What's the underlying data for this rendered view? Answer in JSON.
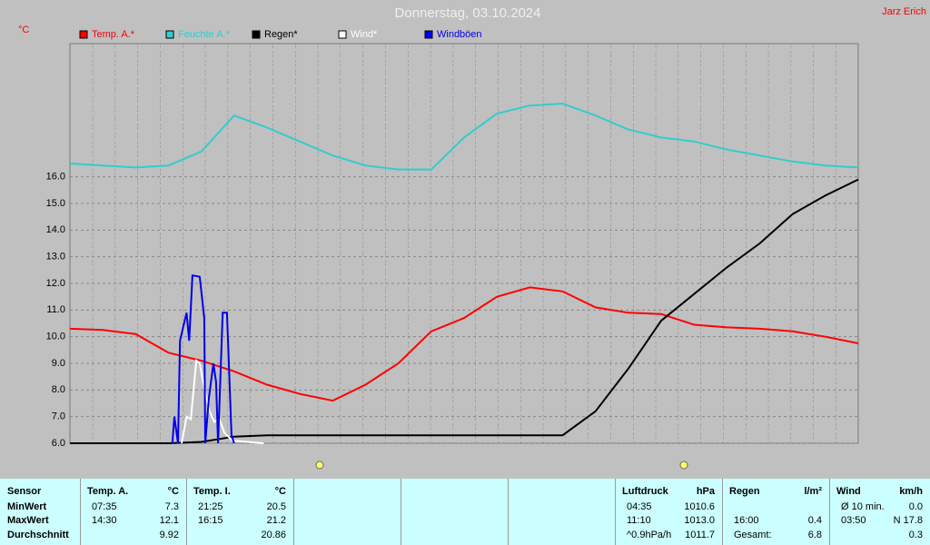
{
  "chart_data": {
    "type": "line",
    "title": "Donnerstag, 03.10.2024",
    "author": "Jarz Erich",
    "y_unit": "°C",
    "x": [
      0,
      1,
      2,
      3,
      4,
      5,
      6,
      7,
      8,
      9,
      10,
      11,
      12,
      13,
      14,
      15,
      16,
      17,
      18,
      19,
      20,
      21,
      22,
      23,
      24
    ],
    "xlim": [
      0,
      24
    ],
    "ylim": [
      6,
      21
    ],
    "yticks": [
      {
        "value": 6,
        "label": "6.0"
      },
      {
        "value": 7,
        "label": "7.0"
      },
      {
        "value": 8,
        "label": "8.0"
      },
      {
        "value": 9,
        "label": "9.0"
      },
      {
        "value": 10,
        "label": "10.0"
      },
      {
        "value": 11,
        "label": "11.0"
      },
      {
        "value": 12,
        "label": "12.0"
      },
      {
        "value": 13,
        "label": "13.0"
      },
      {
        "value": 14,
        "label": "14.0"
      },
      {
        "value": 15,
        "label": "15.0"
      },
      {
        "value": 16,
        "label": "16.0"
      }
    ],
    "y2lim": [
      0,
      100
    ],
    "grid": true,
    "series": [
      {
        "name": "Temp. A.*",
        "color": "#ff0000",
        "values": [
          10.3,
          10.25,
          10.1,
          9.4,
          9.1,
          8.7,
          8.2,
          7.85,
          7.6,
          8.2,
          9.0,
          10.2,
          10.7,
          11.5,
          11.85,
          11.7,
          11.1,
          10.9,
          10.85,
          10.45,
          10.35,
          10.3,
          10.2,
          10.0,
          9.75
        ]
      },
      {
        "name": "Feuchte A.*",
        "color": "#33cccc",
        "axis": "y2",
        "values": [
          70,
          69.5,
          69,
          69.5,
          73,
          82,
          79,
          75.5,
          72,
          69.5,
          68.5,
          68.5,
          76.5,
          82.5,
          84.5,
          85,
          82,
          78.5,
          76.5,
          75.5,
          73.5,
          72,
          70.5,
          69.5,
          69
        ]
      },
      {
        "name": "Regen*",
        "color": "#000000",
        "values": [
          6.0,
          6.0,
          6.0,
          6.0,
          6.05,
          6.25,
          6.3,
          6.3,
          6.3,
          6.3,
          6.3,
          6.3,
          6.3,
          6.3,
          6.3,
          6.3,
          7.2,
          8.8,
          10.6,
          11.6,
          12.6,
          13.5,
          14.6,
          15.3,
          15.9
        ]
      },
      {
        "name": "Wind*",
        "color": "#ffffff",
        "x": [
          3.4,
          3.55,
          3.68,
          3.85,
          3.95,
          4.1,
          4.25,
          4.4,
          4.55,
          4.7,
          4.95,
          5.9
        ],
        "values": [
          6.0,
          7.0,
          6.9,
          9.1,
          9.0,
          8.0,
          7.2,
          6.8,
          6.9,
          6.4,
          6.1,
          6.0
        ]
      },
      {
        "name": "Windböen",
        "color": "#0000ee",
        "x": [
          3.12,
          3.18,
          3.29,
          3.35,
          3.55,
          3.63,
          3.73,
          3.95,
          4.09,
          4.12,
          4.23,
          4.37,
          4.45,
          4.51,
          4.65,
          4.78,
          4.92,
          5.0
        ],
        "values": [
          6.0,
          7.0,
          6.0,
          9.85,
          10.9,
          9.85,
          12.3,
          12.25,
          10.7,
          6.0,
          7.7,
          9.0,
          8.3,
          6.0,
          10.9,
          10.9,
          6.3,
          6.0
        ]
      }
    ]
  },
  "table": {
    "row_labels": [
      "Sensor",
      "MinWert",
      "MaxWert",
      "Durchschnitt"
    ],
    "groups": [
      {
        "header": [
          "Temp. A.",
          "°C"
        ],
        "rows": [
          [
            "07:35",
            "7.3"
          ],
          [
            "14:30",
            "12.1"
          ],
          [
            null,
            "9.92"
          ]
        ]
      },
      {
        "header": [
          "Temp. I.",
          "°C"
        ],
        "rows": [
          [
            "21:25",
            "20.5"
          ],
          [
            "16:15",
            "21.2"
          ],
          [
            null,
            "20.86"
          ]
        ]
      },
      {
        "header": [
          "Luftdruck",
          "hPa"
        ],
        "rows": [
          [
            "04:35",
            "1010.6"
          ],
          [
            "11:10",
            "1013.0"
          ],
          [
            "^0.9hPa/h",
            "1011.7"
          ]
        ]
      },
      {
        "header": [
          "Regen",
          "l/m²"
        ],
        "rows": [
          [
            null,
            null
          ],
          [
            "16:00",
            "0.4"
          ],
          [
            "Gesamt:",
            "6.8"
          ]
        ]
      },
      {
        "header": [
          "Wind",
          "km/h"
        ],
        "rows": [
          [
            "Ø 10 min.",
            "0.0"
          ],
          [
            "03:50",
            "N 17.8"
          ],
          [
            null,
            "0.3"
          ]
        ]
      }
    ]
  }
}
